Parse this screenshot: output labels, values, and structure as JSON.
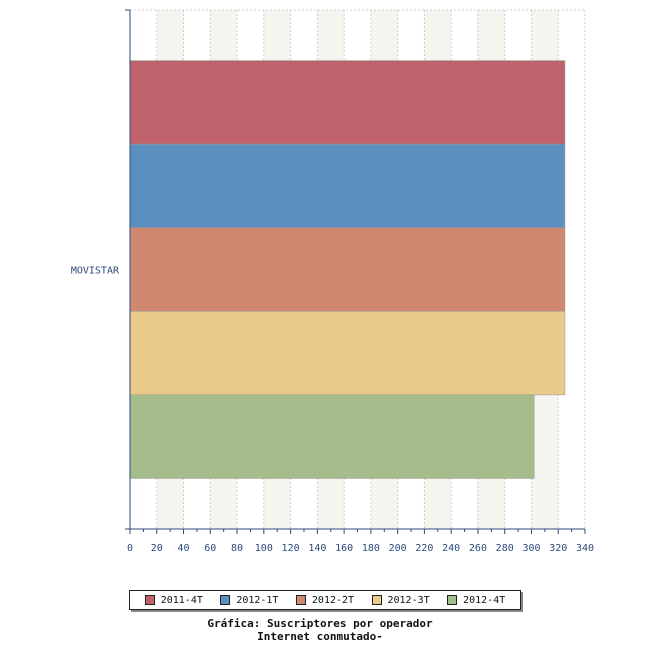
{
  "chart_data": {
    "type": "bar",
    "orientation": "horizontal",
    "title": "Gráfica: Suscriptores por operador",
    "subtitle": "Internet conmutado-",
    "categories": [
      "MOVISTAR"
    ],
    "series": [
      {
        "name": "2011-4T",
        "values": [
          325
        ],
        "color": "#c0626c"
      },
      {
        "name": "2012-1T",
        "values": [
          325
        ],
        "color": "#5b8fbf"
      },
      {
        "name": "2012-2T",
        "values": [
          325
        ],
        "color": "#d08870"
      },
      {
        "name": "2012-3T",
        "values": [
          325
        ],
        "color": "#ebcb8b"
      },
      {
        "name": "2012-4T",
        "values": [
          302
        ],
        "color": "#a5bd8b"
      }
    ],
    "xlim": [
      0,
      340
    ],
    "xticks": [
      "0",
      "20",
      "40",
      "60",
      "80",
      "100",
      "120",
      "140",
      "160",
      "180",
      "200",
      "220",
      "240",
      "260",
      "280",
      "300",
      "320",
      "340"
    ],
    "grid": true,
    "legend": "bottom"
  }
}
